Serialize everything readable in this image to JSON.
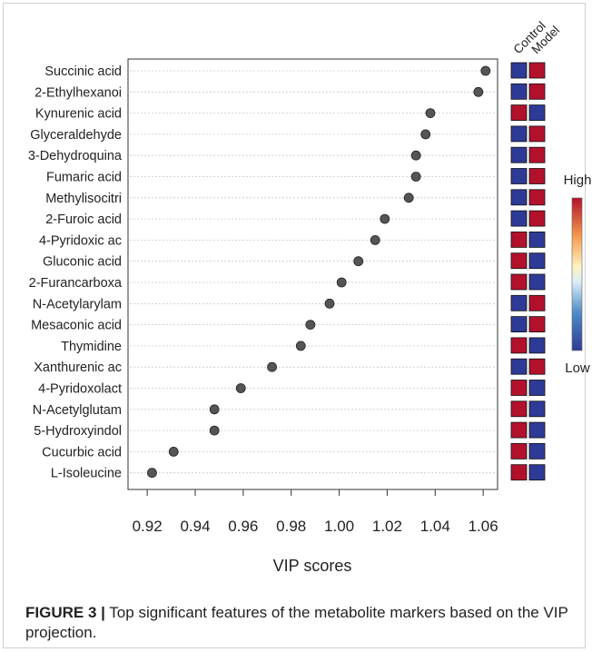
{
  "chart_data": {
    "type": "scatter",
    "title": "",
    "xlabel": "VIP scores",
    "ylabel": "",
    "xlim": [
      0.912,
      1.066
    ],
    "xticks": [
      "0.92",
      "0.94",
      "0.96",
      "0.98",
      "1.00",
      "1.02",
      "1.04",
      "1.06"
    ],
    "grid": "horizontal dotted",
    "categories": [
      "Succinic acid",
      "2-Ethylhexanoi",
      "Kynurenic acid",
      "Glyceraldehyde",
      "3-Dehydroquina",
      "Fumaric acid",
      "Methylisocitri",
      "2-Furoic acid",
      "4-Pyridoxic ac",
      "Gluconic acid",
      "2-Furancarboxa",
      "N-Acetylarylam",
      "Mesaconic acid",
      "Thymidine",
      "Xanthurenic ac",
      "4-Pyridoxolact",
      "N-Acetylglutam",
      "5-Hydroxyindol",
      "Cucurbic acid",
      "L-Isoleucine"
    ],
    "values": [
      1.061,
      1.058,
      1.038,
      1.036,
      1.032,
      1.032,
      1.029,
      1.019,
      1.015,
      1.008,
      1.001,
      0.996,
      0.988,
      0.984,
      0.972,
      0.959,
      0.948,
      0.948,
      0.931,
      0.922
    ],
    "heatmap": {
      "columns": [
        "Control",
        "Model"
      ],
      "cells": [
        [
          "low",
          "high"
        ],
        [
          "low",
          "high"
        ],
        [
          "high",
          "low"
        ],
        [
          "low",
          "high"
        ],
        [
          "low",
          "high"
        ],
        [
          "low",
          "high"
        ],
        [
          "low",
          "high"
        ],
        [
          "low",
          "high"
        ],
        [
          "high",
          "low"
        ],
        [
          "high",
          "low"
        ],
        [
          "high",
          "low"
        ],
        [
          "low",
          "high"
        ],
        [
          "low",
          "high"
        ],
        [
          "high",
          "low"
        ],
        [
          "low",
          "high"
        ],
        [
          "high",
          "low"
        ],
        [
          "high",
          "low"
        ],
        [
          "high",
          "low"
        ],
        [
          "high",
          "low"
        ],
        [
          "high",
          "low"
        ]
      ]
    },
    "legend": {
      "high_label": "High",
      "low_label": "Low",
      "placement": "right"
    },
    "colors": {
      "high": "#b2112b",
      "low": "#2d3b96",
      "point": "#555555"
    }
  },
  "caption": {
    "label": "FIGURE 3 |",
    "text": " Top significant features of the metabolite markers based on the VIP projection."
  }
}
